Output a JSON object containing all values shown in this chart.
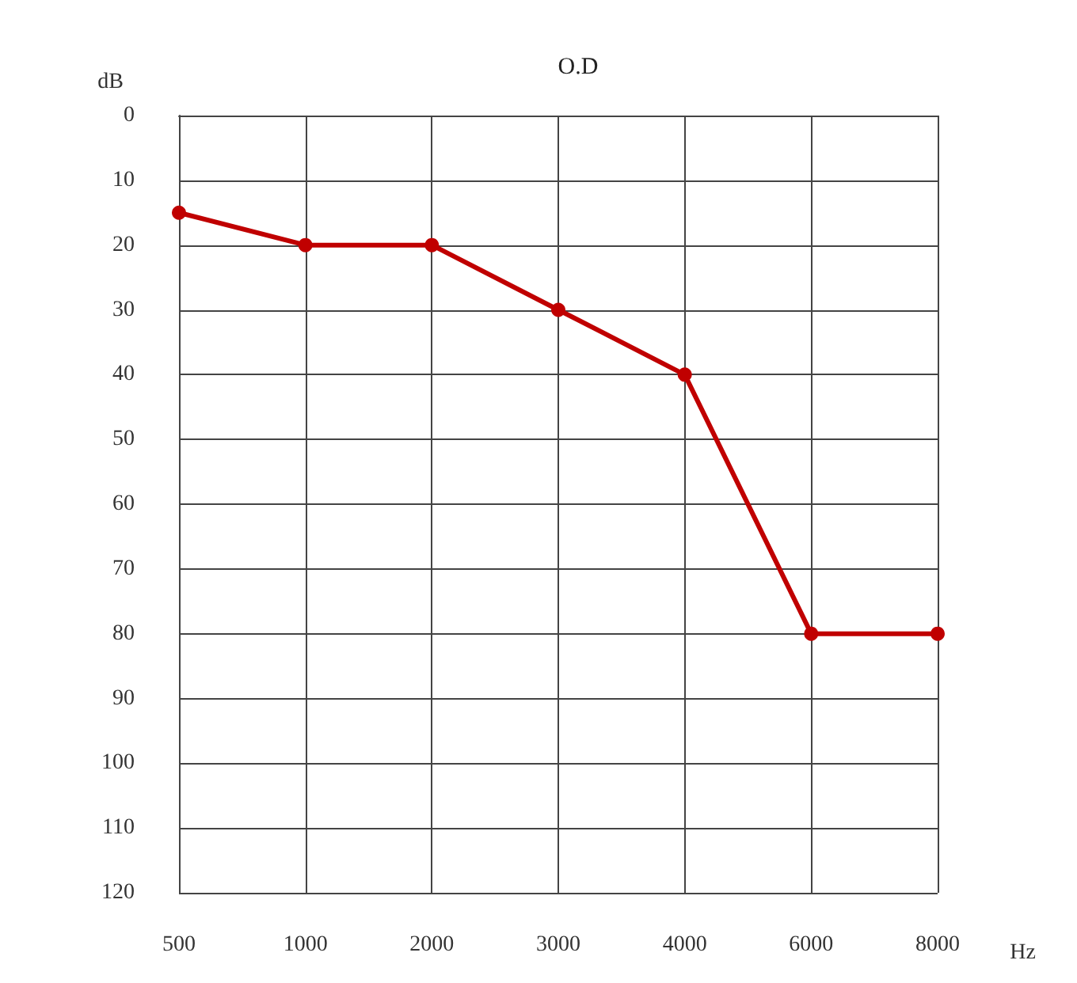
{
  "chart_data": {
    "type": "line",
    "title": "O.D",
    "xlabel": "Hz",
    "ylabel": "dB",
    "categories": [
      "500",
      "1000",
      "2000",
      "3000",
      "4000",
      "6000",
      "8000"
    ],
    "series": [
      {
        "color": "#c00000",
        "values": [
          15,
          20,
          20,
          30,
          40,
          80,
          80
        ]
      }
    ],
    "ylim": [
      120,
      0
    ],
    "yticks": [
      0,
      10,
      20,
      30,
      40,
      50,
      60,
      70,
      80,
      90,
      100,
      110,
      120
    ],
    "grid": true,
    "marker": "circle",
    "line_style": "solid"
  }
}
